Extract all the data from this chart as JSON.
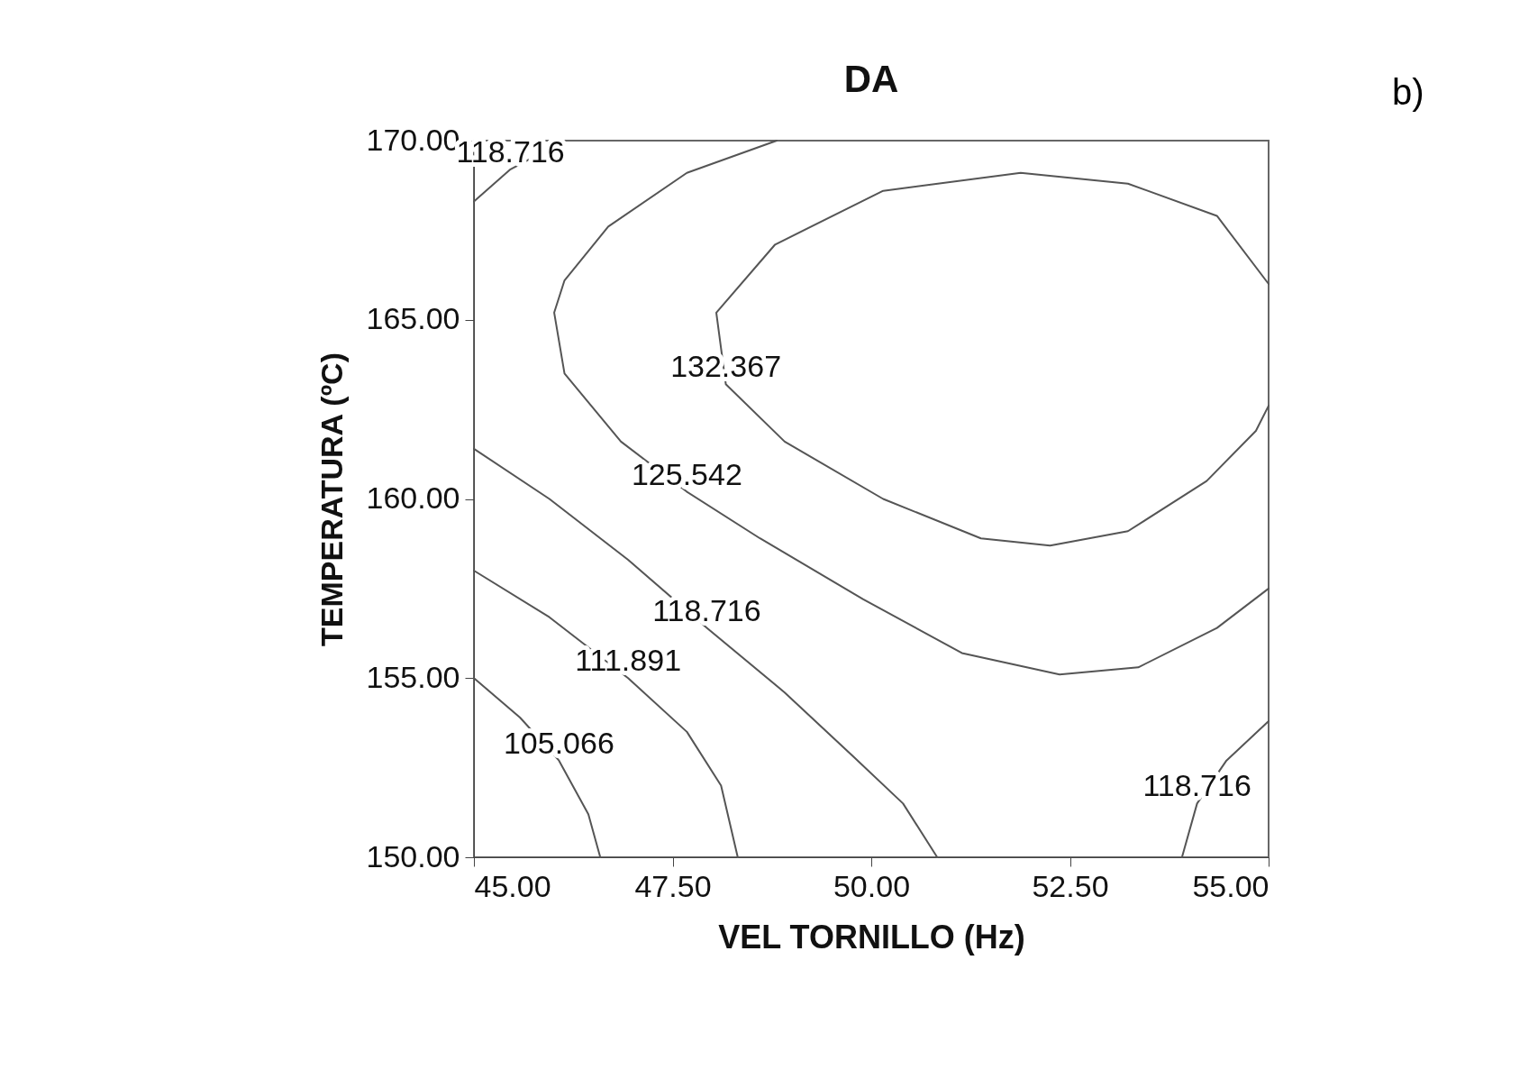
{
  "chart_data": {
    "type": "line",
    "title": "DA",
    "xlabel": "VEL TORNILLO (Hz)",
    "ylabel": "TEMPERATURA (ºC)",
    "annotations": [
      "b)"
    ],
    "xlim": [
      45,
      55
    ],
    "xticks": [
      {
        "value": 45,
        "label": "45.00"
      },
      {
        "value": 47.5,
        "label": "47.50"
      },
      {
        "value": 50,
        "label": "50.00"
      },
      {
        "value": 52.5,
        "label": "52.50"
      },
      {
        "value": 55,
        "label": "55.00"
      }
    ],
    "ylim": [
      150,
      170
    ],
    "yticks": [
      {
        "value": 150,
        "label": "150.00"
      },
      {
        "value": 155,
        "label": "155.00"
      },
      {
        "value": 160,
        "label": "160.00"
      },
      {
        "value": 165,
        "label": "165.00"
      },
      {
        "value": 170,
        "label": "170.00"
      }
    ],
    "grid": false,
    "legend": false,
    "marker": "none",
    "line_style": "solid",
    "series": [
      {
        "name": "118.716",
        "color": "#555555",
        "x": [
          45,
          45.46,
          46.14
        ],
        "values": [
          168.3,
          169.2,
          170
        ]
      },
      {
        "name": "132.367",
        "color": "#555555",
        "x": [
          55,
          54.35,
          53.23,
          51.88,
          50.15,
          48.79,
          48.05,
          48.17,
          48.91,
          50.15,
          51.38,
          52.25,
          53.23,
          54.22,
          54.84,
          55
        ],
        "values": [
          166.0,
          167.9,
          168.8,
          169.1,
          168.6,
          167.1,
          165.2,
          163.2,
          161.6,
          160.0,
          158.9,
          158.7,
          159.1,
          160.5,
          161.9,
          162.6
        ]
      },
      {
        "name": "125.542",
        "color": "#555555",
        "x": [
          48.81,
          47.68,
          46.69,
          46.14,
          46.01,
          46.14,
          46.85,
          47.68,
          48.6,
          49.9,
          51.14,
          52.37,
          53.36,
          54.35,
          55
        ],
        "values": [
          170.0,
          169.1,
          167.6,
          166.1,
          165.2,
          163.5,
          161.6,
          160.2,
          158.9,
          157.2,
          155.7,
          155.1,
          155.3,
          156.4,
          157.5
        ]
      },
      {
        "name": "118.716",
        "color": "#555555",
        "x": [
          45,
          45.95,
          46.94,
          47.93,
          48.91,
          49.78,
          50.4,
          50.83
        ],
        "values": [
          161.4,
          160.0,
          158.3,
          156.4,
          154.6,
          152.8,
          151.5,
          150
        ]
      },
      {
        "name": "111.891",
        "color": "#555555",
        "x": [
          45,
          45.95,
          46.94,
          47.68,
          48.11,
          48.32
        ],
        "values": [
          158.0,
          156.7,
          155.0,
          153.5,
          152.0,
          150
        ]
      },
      {
        "name": "105.066",
        "color": "#555555",
        "x": [
          45,
          45.58,
          46.07,
          46.44,
          46.59
        ],
        "values": [
          155.0,
          153.9,
          152.7,
          151.2,
          150
        ]
      },
      {
        "name": "118.716",
        "color": "#555555",
        "x": [
          53.91,
          54.1,
          54.47,
          55
        ],
        "values": [
          150,
          151.5,
          152.7,
          153.8
        ]
      }
    ]
  }
}
